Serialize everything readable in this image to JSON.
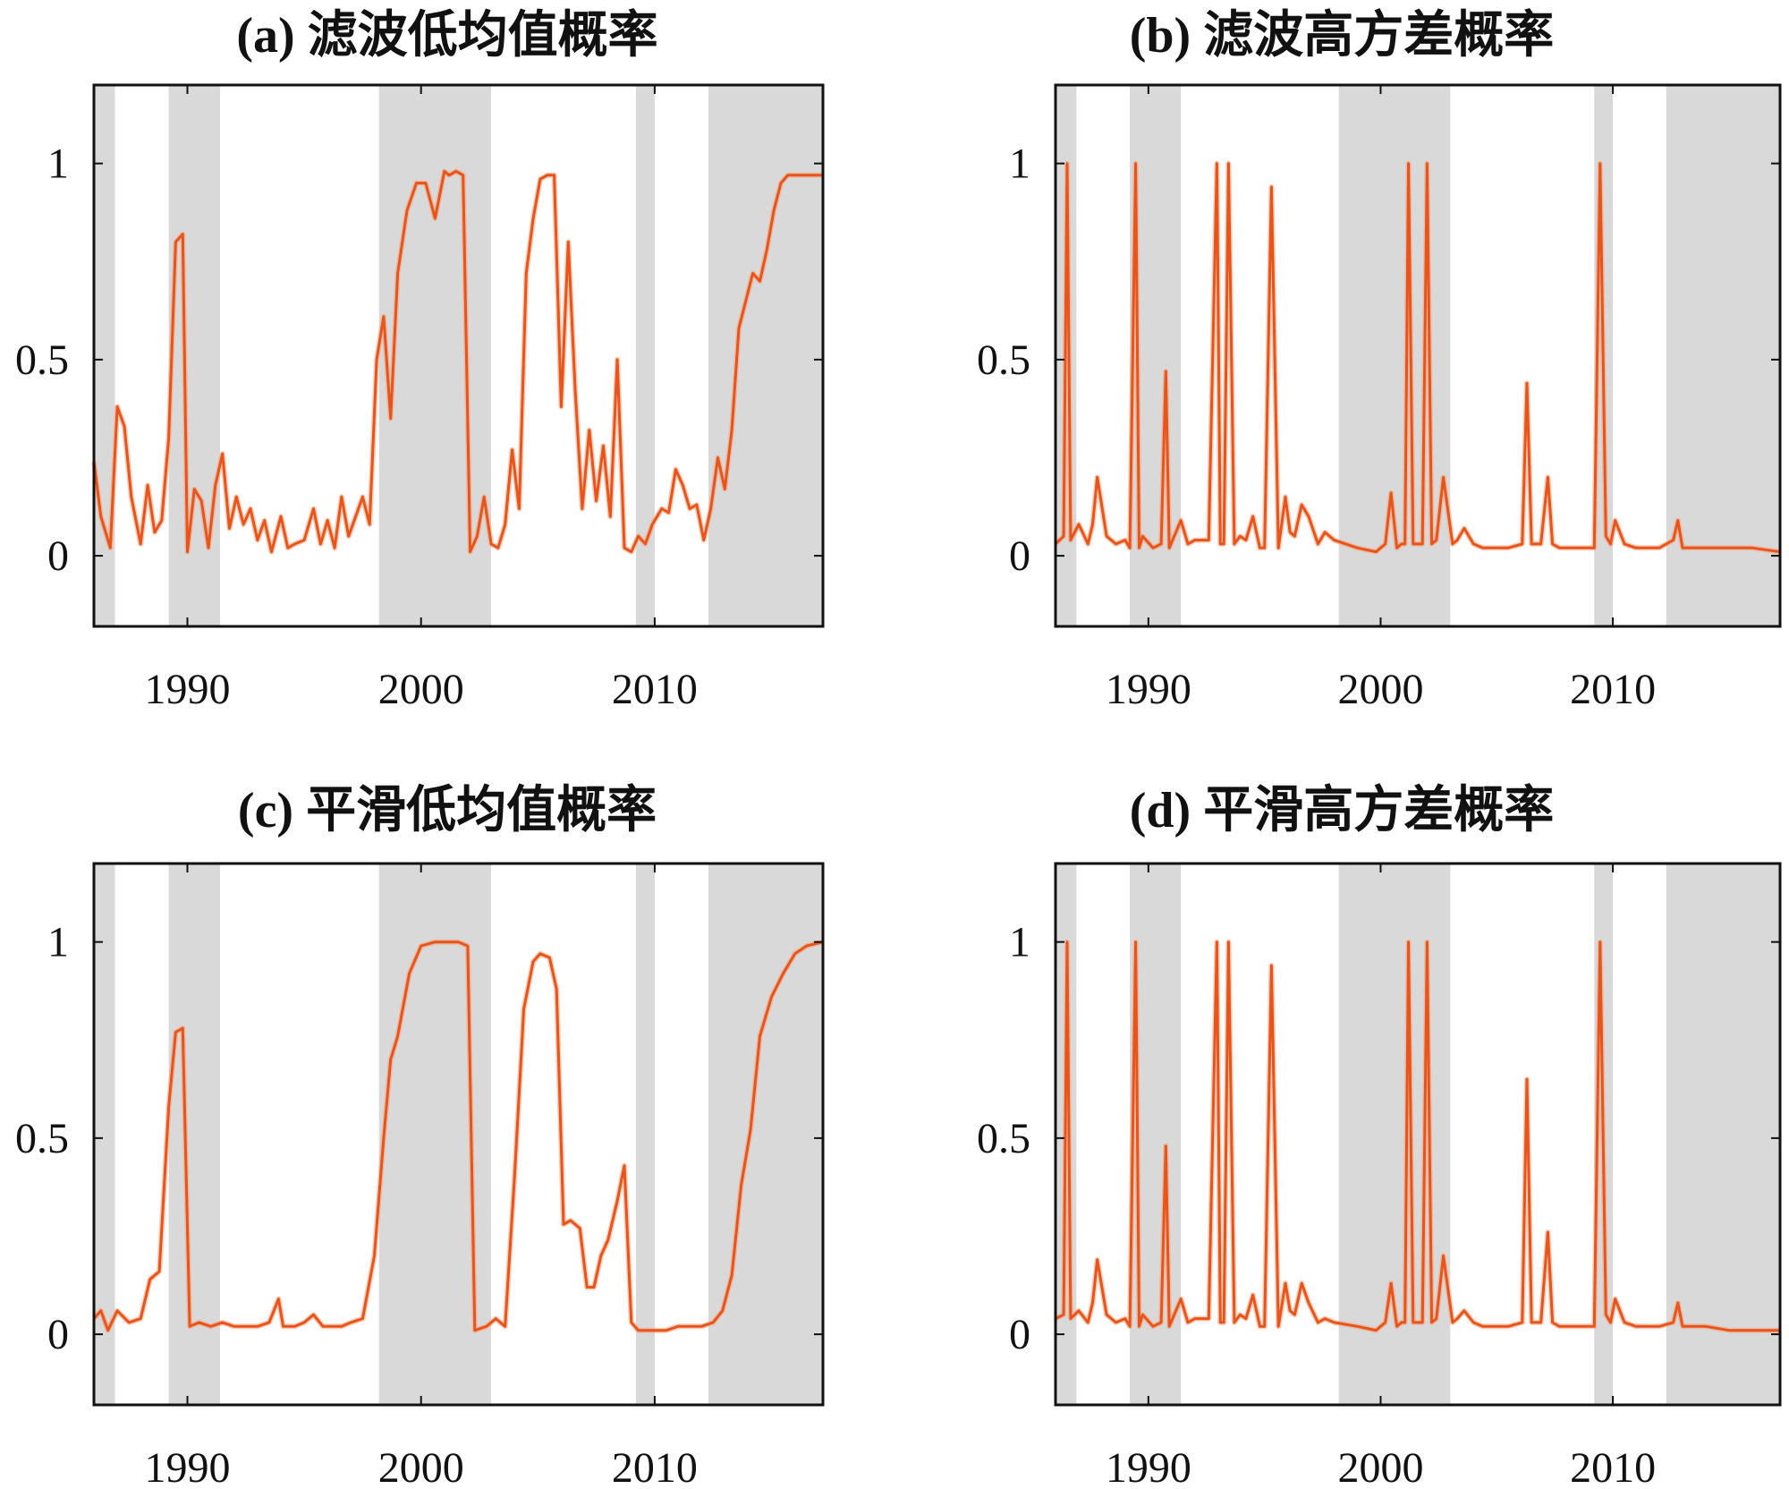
{
  "chart_data": [
    {
      "type": "line",
      "title": "(a) 滤波低均值概率",
      "xlim": [
        1986,
        2017.2
      ],
      "ylim": [
        -0.18,
        1.2
      ],
      "xticks": [
        {
          "v": 1990,
          "label": "1990"
        },
        {
          "v": 2000,
          "label": "2000"
        },
        {
          "v": 2010,
          "label": "2010"
        }
      ],
      "yticks": [
        {
          "v": 0,
          "label": "0"
        },
        {
          "v": 0.5,
          "label": "0.5"
        },
        {
          "v": 1,
          "label": "1"
        }
      ],
      "shaded_periods": [
        [
          1986,
          1986.9
        ],
        [
          1989.2,
          1991.4
        ],
        [
          1998.2,
          2003
        ],
        [
          2009.2,
          2010
        ],
        [
          2012.3,
          2017.2
        ]
      ],
      "line_color": "#e8541a",
      "shade_color": "#d9d9d9",
      "series": [
        {
          "x": [
            1986,
            1986.3,
            1986.7,
            1987,
            1987.3,
            1987.6,
            1988,
            1988.3,
            1988.6,
            1988.9,
            1989.2,
            1989.5,
            1989.8,
            1990,
            1990.3,
            1990.6,
            1990.9,
            1991.2,
            1991.5,
            1991.8,
            1992.1,
            1992.4,
            1992.7,
            1993,
            1993.3,
            1993.6,
            1994,
            1994.3,
            1994.6,
            1995,
            1995.4,
            1995.7,
            1996,
            1996.3,
            1996.6,
            1996.9,
            1997.2,
            1997.5,
            1997.8,
            1998.1,
            1998.4,
            1998.7,
            1999,
            1999.4,
            1999.8,
            2000.2,
            2000.6,
            2001,
            2001.2,
            2001.5,
            2001.8,
            2002.1,
            2002.4,
            2002.7,
            2003,
            2003.3,
            2003.6,
            2003.9,
            2004.2,
            2004.5,
            2004.8,
            2005.1,
            2005.4,
            2005.7,
            2006,
            2006.3,
            2006.6,
            2006.9,
            2007.2,
            2007.5,
            2007.8,
            2008.1,
            2008.4,
            2008.7,
            2009,
            2009.3,
            2009.6,
            2009.9,
            2010.3,
            2010.6,
            2010.9,
            2011.2,
            2011.5,
            2011.8,
            2012.1,
            2012.4,
            2012.7,
            2013,
            2013.3,
            2013.6,
            2013.9,
            2014.2,
            2014.5,
            2014.8,
            2015.1,
            2015.4,
            2015.7,
            2016,
            2016.3,
            2016.6,
            2016.9,
            2017.2
          ],
          "y": [
            0.24,
            0.1,
            0.02,
            0.38,
            0.33,
            0.15,
            0.03,
            0.18,
            0.06,
            0.09,
            0.3,
            0.8,
            0.82,
            0.01,
            0.17,
            0.14,
            0.02,
            0.18,
            0.26,
            0.07,
            0.15,
            0.08,
            0.12,
            0.04,
            0.09,
            0.01,
            0.1,
            0.02,
            0.03,
            0.04,
            0.12,
            0.03,
            0.09,
            0.02,
            0.15,
            0.05,
            0.1,
            0.15,
            0.08,
            0.5,
            0.61,
            0.35,
            0.72,
            0.88,
            0.95,
            0.95,
            0.86,
            0.98,
            0.97,
            0.98,
            0.97,
            0.01,
            0.05,
            0.15,
            0.03,
            0.02,
            0.08,
            0.27,
            0.12,
            0.72,
            0.86,
            0.96,
            0.97,
            0.97,
            0.38,
            0.8,
            0.42,
            0.12,
            0.32,
            0.14,
            0.28,
            0.1,
            0.5,
            0.02,
            0.01,
            0.05,
            0.03,
            0.08,
            0.12,
            0.11,
            0.22,
            0.18,
            0.12,
            0.13,
            0.04,
            0.12,
            0.25,
            0.17,
            0.32,
            0.58,
            0.65,
            0.72,
            0.7,
            0.78,
            0.88,
            0.95,
            0.97,
            0.97,
            0.97,
            0.97,
            0.97,
            0.97
          ]
        }
      ]
    },
    {
      "type": "line",
      "title": "(b) 滤波高方差概率",
      "xlim": [
        1986,
        2017.2
      ],
      "ylim": [
        -0.18,
        1.2
      ],
      "xticks": [
        {
          "v": 1990,
          "label": "1990"
        },
        {
          "v": 2000,
          "label": "2000"
        },
        {
          "v": 2010,
          "label": "2010"
        }
      ],
      "yticks": [
        {
          "v": 0,
          "label": "0"
        },
        {
          "v": 0.5,
          "label": "0.5"
        },
        {
          "v": 1,
          "label": "1"
        }
      ],
      "shaded_periods": [
        [
          1986,
          1986.9
        ],
        [
          1989.2,
          1991.4
        ],
        [
          1998.2,
          2003
        ],
        [
          2009.2,
          2010
        ],
        [
          2012.3,
          2017.2
        ]
      ],
      "line_color": "#e8541a",
      "shade_color": "#d9d9d9",
      "series": [
        {
          "x": [
            1986,
            1986.35,
            1986.5,
            1986.65,
            1987,
            1987.4,
            1987.6,
            1987.8,
            1988.2,
            1988.6,
            1989,
            1989.2,
            1989.45,
            1989.6,
            1989.75,
            1990.2,
            1990.55,
            1990.75,
            1990.9,
            1991.4,
            1991.7,
            1992,
            1992.6,
            1992.95,
            1993.1,
            1993.25,
            1993.45,
            1993.7,
            1993.95,
            1994.2,
            1994.5,
            1994.8,
            1995,
            1995.3,
            1995.6,
            1995.9,
            1996.1,
            1996.3,
            1996.6,
            1996.9,
            1997.3,
            1997.6,
            1998,
            1999,
            1999.8,
            2000.2,
            2000.45,
            2000.7,
            2000.9,
            2001.05,
            2001.2,
            2001.4,
            2001.8,
            2002,
            2002.2,
            2002.4,
            2002.7,
            2003.1,
            2003.3,
            2003.6,
            2004,
            2004.4,
            2004.8,
            2005.5,
            2006.1,
            2006.3,
            2006.5,
            2006.9,
            2007.2,
            2007.4,
            2007.7,
            2008.5,
            2009.2,
            2009.45,
            2009.7,
            2009.9,
            2010.1,
            2010.5,
            2011,
            2012,
            2012.6,
            2012.8,
            2013,
            2014,
            2015,
            2016,
            2017.2
          ],
          "y": [
            0.03,
            0.05,
            1.0,
            0.04,
            0.08,
            0.03,
            0.08,
            0.2,
            0.05,
            0.03,
            0.04,
            0.02,
            1.0,
            0.02,
            0.05,
            0.02,
            0.03,
            0.47,
            0.02,
            0.09,
            0.03,
            0.04,
            0.04,
            1.0,
            0.03,
            0.03,
            1.0,
            0.03,
            0.05,
            0.04,
            0.1,
            0.02,
            0.02,
            0.94,
            0.02,
            0.15,
            0.06,
            0.05,
            0.13,
            0.1,
            0.03,
            0.06,
            0.04,
            0.02,
            0.01,
            0.03,
            0.16,
            0.02,
            0.03,
            0.03,
            1.0,
            0.03,
            0.03,
            1.0,
            0.03,
            0.04,
            0.2,
            0.03,
            0.04,
            0.07,
            0.03,
            0.02,
            0.02,
            0.02,
            0.03,
            0.44,
            0.03,
            0.03,
            0.2,
            0.03,
            0.02,
            0.02,
            0.02,
            1.0,
            0.05,
            0.03,
            0.09,
            0.03,
            0.02,
            0.02,
            0.04,
            0.09,
            0.02,
            0.02,
            0.02,
            0.02,
            0.01
          ]
        }
      ]
    },
    {
      "type": "line",
      "title": "(c) 平滑低均值概率",
      "xlim": [
        1986,
        2017.2
      ],
      "ylim": [
        -0.18,
        1.2
      ],
      "xticks": [
        {
          "v": 1990,
          "label": "1990"
        },
        {
          "v": 2000,
          "label": "2000"
        },
        {
          "v": 2010,
          "label": "2010"
        }
      ],
      "yticks": [
        {
          "v": 0,
          "label": "0"
        },
        {
          "v": 0.5,
          "label": "0.5"
        },
        {
          "v": 1,
          "label": "1"
        }
      ],
      "shaded_periods": [
        [
          1986,
          1986.9
        ],
        [
          1989.2,
          1991.4
        ],
        [
          1998.2,
          2003
        ],
        [
          2009.2,
          2010
        ],
        [
          2012.3,
          2017.2
        ]
      ],
      "line_color": "#e8541a",
      "shade_color": "#d9d9d9",
      "series": [
        {
          "x": [
            1986,
            1986.3,
            1986.6,
            1987,
            1987.5,
            1988,
            1988.4,
            1988.8,
            1989.2,
            1989.5,
            1989.8,
            1990.1,
            1990.5,
            1991,
            1991.5,
            1992,
            1992.5,
            1993,
            1993.5,
            1993.9,
            1994.1,
            1994.6,
            1995,
            1995.4,
            1995.8,
            1996.1,
            1996.6,
            1997,
            1997.5,
            1998,
            1998.4,
            1998.7,
            1999,
            1999.5,
            2000,
            2000.6,
            2001,
            2001.6,
            2002,
            2002.3,
            2002.8,
            2003.2,
            2003.6,
            2004,
            2004.4,
            2004.8,
            2005.1,
            2005.5,
            2005.8,
            2006.1,
            2006.4,
            2006.8,
            2007.1,
            2007.4,
            2007.7,
            2008,
            2008.4,
            2008.7,
            2009,
            2009.3,
            2009.8,
            2010.5,
            2011,
            2011.5,
            2012,
            2012.5,
            2012.9,
            2013.3,
            2013.7,
            2014.1,
            2014.5,
            2015,
            2015.5,
            2016,
            2016.5,
            2017.2
          ],
          "y": [
            0.04,
            0.06,
            0.01,
            0.06,
            0.03,
            0.04,
            0.14,
            0.16,
            0.58,
            0.77,
            0.78,
            0.02,
            0.03,
            0.02,
            0.03,
            0.02,
            0.02,
            0.02,
            0.03,
            0.09,
            0.02,
            0.02,
            0.03,
            0.05,
            0.02,
            0.02,
            0.02,
            0.03,
            0.04,
            0.2,
            0.5,
            0.7,
            0.76,
            0.92,
            0.99,
            1.0,
            1.0,
            1.0,
            0.99,
            0.01,
            0.02,
            0.04,
            0.02,
            0.4,
            0.83,
            0.95,
            0.97,
            0.96,
            0.88,
            0.28,
            0.29,
            0.27,
            0.12,
            0.12,
            0.2,
            0.24,
            0.34,
            0.43,
            0.03,
            0.01,
            0.01,
            0.01,
            0.02,
            0.02,
            0.02,
            0.03,
            0.06,
            0.15,
            0.38,
            0.52,
            0.76,
            0.86,
            0.92,
            0.97,
            0.99,
            1.0
          ]
        }
      ]
    },
    {
      "type": "line",
      "title": "(d) 平滑高方差概率",
      "xlim": [
        1986,
        2017.2
      ],
      "ylim": [
        -0.18,
        1.2
      ],
      "xticks": [
        {
          "v": 1990,
          "label": "1990"
        },
        {
          "v": 2000,
          "label": "2000"
        },
        {
          "v": 2010,
          "label": "2010"
        }
      ],
      "yticks": [
        {
          "v": 0,
          "label": "0"
        },
        {
          "v": 0.5,
          "label": "0.5"
        },
        {
          "v": 1,
          "label": "1"
        }
      ],
      "shaded_periods": [
        [
          1986,
          1986.9
        ],
        [
          1989.2,
          1991.4
        ],
        [
          1998.2,
          2003
        ],
        [
          2009.2,
          2010
        ],
        [
          2012.3,
          2017.2
        ]
      ],
      "line_color": "#e8541a",
      "shade_color": "#d9d9d9",
      "series": [
        {
          "x": [
            1986,
            1986.35,
            1986.5,
            1986.65,
            1987,
            1987.4,
            1987.6,
            1987.8,
            1988.2,
            1988.6,
            1989,
            1989.2,
            1989.45,
            1989.6,
            1989.75,
            1990.2,
            1990.55,
            1990.75,
            1990.9,
            1991.4,
            1991.7,
            1992,
            1992.6,
            1992.95,
            1993.1,
            1993.25,
            1993.45,
            1993.7,
            1993.95,
            1994.2,
            1994.5,
            1994.8,
            1995,
            1995.3,
            1995.6,
            1995.9,
            1996.1,
            1996.3,
            1996.6,
            1996.9,
            1997.3,
            1997.6,
            1998,
            1999,
            1999.8,
            2000.2,
            2000.45,
            2000.7,
            2000.9,
            2001.05,
            2001.2,
            2001.4,
            2001.8,
            2002,
            2002.2,
            2002.4,
            2002.7,
            2003.1,
            2003.3,
            2003.6,
            2004,
            2004.4,
            2004.8,
            2005.5,
            2006.1,
            2006.3,
            2006.5,
            2006.9,
            2007.2,
            2007.4,
            2007.7,
            2008.5,
            2009.2,
            2009.45,
            2009.7,
            2009.9,
            2010.1,
            2010.5,
            2011,
            2012,
            2012.6,
            2012.8,
            2013,
            2014,
            2015,
            2016,
            2017.2
          ],
          "y": [
            0.04,
            0.05,
            1.0,
            0.04,
            0.06,
            0.03,
            0.08,
            0.19,
            0.05,
            0.03,
            0.04,
            0.02,
            1.0,
            0.02,
            0.05,
            0.02,
            0.03,
            0.48,
            0.02,
            0.09,
            0.03,
            0.04,
            0.04,
            1.0,
            0.03,
            0.03,
            1.0,
            0.03,
            0.05,
            0.04,
            0.1,
            0.02,
            0.02,
            0.94,
            0.02,
            0.13,
            0.06,
            0.05,
            0.13,
            0.08,
            0.03,
            0.04,
            0.03,
            0.02,
            0.01,
            0.03,
            0.13,
            0.02,
            0.03,
            0.03,
            1.0,
            0.03,
            0.03,
            1.0,
            0.03,
            0.04,
            0.2,
            0.03,
            0.04,
            0.06,
            0.03,
            0.02,
            0.02,
            0.02,
            0.03,
            0.65,
            0.03,
            0.03,
            0.26,
            0.03,
            0.02,
            0.02,
            0.02,
            1.0,
            0.05,
            0.03,
            0.09,
            0.03,
            0.02,
            0.02,
            0.03,
            0.08,
            0.02,
            0.02,
            0.01,
            0.01,
            0.01
          ]
        }
      ]
    }
  ]
}
